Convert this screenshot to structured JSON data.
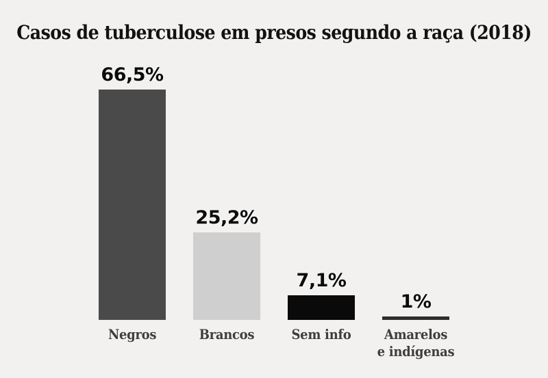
{
  "chart_data": {
    "type": "bar",
    "title": "Casos de tuberculose em presos segundo a raça (2018)",
    "categories": [
      "Negros",
      "Brancos",
      "Sem info",
      "Amarelos e indígenas"
    ],
    "categories_display": [
      "Negros",
      "Brancos",
      "Sem info",
      "Amarelos\ne indígenas"
    ],
    "values": [
      66.5,
      25.2,
      7.1,
      1
    ],
    "value_labels": [
      "66,5%",
      "25,2%",
      "7,1%",
      "1%"
    ],
    "unit": "%",
    "bar_colors": [
      "#4a4a4a",
      "#cfcfcf",
      "#0a0a0a",
      "#2d2d2d"
    ],
    "background_color": "#f2f1f0",
    "xlabel": "",
    "ylabel": "",
    "ylim": [
      0,
      70
    ],
    "grid": false,
    "axes_shown": false,
    "legend": null,
    "value_labels_position": "above-bars",
    "category_labels_position": "below-bars"
  }
}
